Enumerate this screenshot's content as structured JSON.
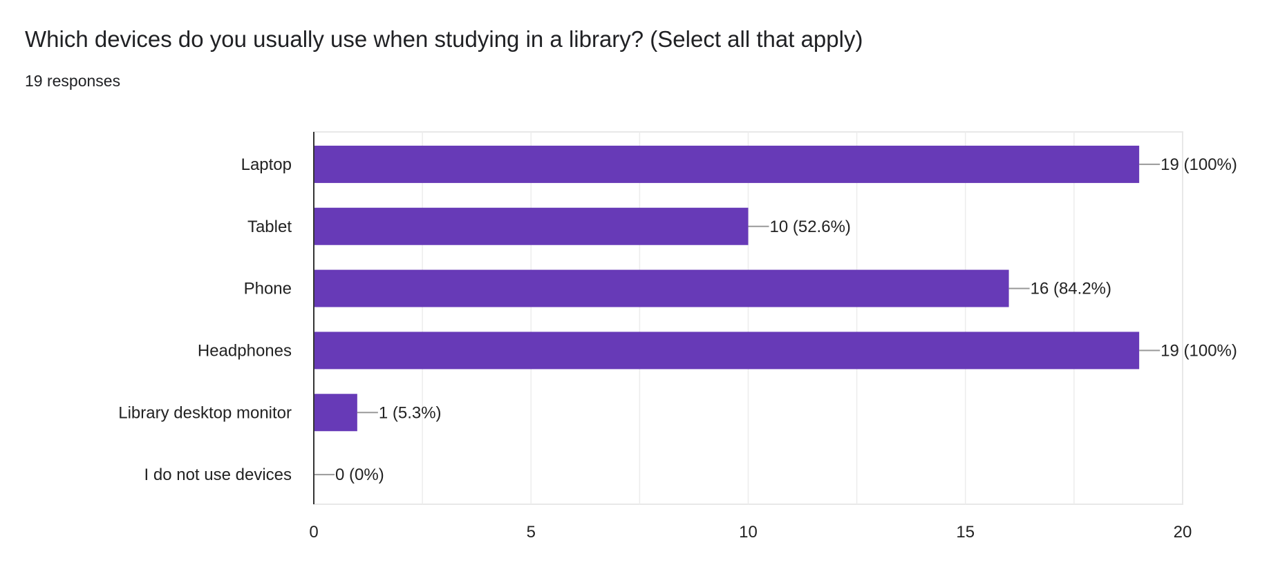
{
  "chart_data": {
    "type": "bar",
    "orientation": "horizontal",
    "title": "Which devices do you usually use when studying in a library? (Select all that apply)",
    "subtitle": "19 responses",
    "categories": [
      "Laptop",
      "Tablet",
      "Phone",
      "Headphones",
      "Library desktop monitor",
      "I do not use devices"
    ],
    "values": [
      19,
      10,
      16,
      19,
      1,
      0
    ],
    "data_labels": [
      "19 (100%)",
      "10 (52.6%)",
      "16 (84.2%)",
      "19 (100%)",
      "1 (5.3%)",
      "0 (0%)"
    ],
    "xlim": [
      0,
      20
    ],
    "xticks": [
      "0",
      "5",
      "10",
      "15",
      "20"
    ],
    "xtick_values": [
      0,
      5,
      10,
      15,
      20
    ],
    "grid": true,
    "bar_color": "#673ab7",
    "xlabel": "",
    "ylabel": ""
  }
}
